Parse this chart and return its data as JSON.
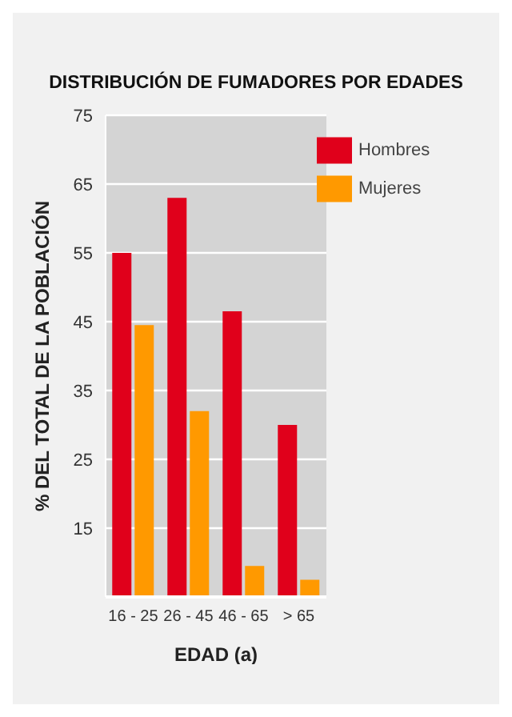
{
  "chart_data": {
    "type": "bar",
    "title": "DISTRIBUCIÓN DE FUMADORES POR EDADES",
    "xlabel": "EDAD (a)",
    "ylabel": "% DEL TOTAL DE LA POBLACIÓN",
    "categories": [
      "16 - 25",
      "26 - 45",
      "46 - 65",
      "> 65"
    ],
    "series": [
      {
        "name": "Hombres",
        "color": "#e0001b",
        "values": [
          55,
          63,
          46.5,
          30
        ]
      },
      {
        "name": "Mujeres",
        "color": "#ff9900",
        "values": [
          44.5,
          32,
          9.5,
          7.5
        ]
      }
    ],
    "ylim": [
      5,
      75
    ],
    "yticks": [
      15,
      25,
      35,
      45,
      55,
      65,
      75
    ],
    "grid": "y",
    "legend": "top right"
  }
}
